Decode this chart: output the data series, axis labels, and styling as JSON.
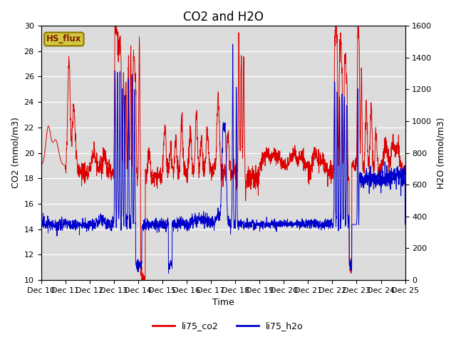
{
  "title": "CO2 and H2O",
  "xlabel": "Time",
  "ylabel_left": "CO2 (mmol/m3)",
  "ylabel_right": "H2O (mmol/m3)",
  "ylim_left": [
    10,
    30
  ],
  "ylim_right": [
    0,
    1600
  ],
  "yticks_left": [
    10,
    12,
    14,
    16,
    18,
    20,
    22,
    24,
    26,
    28,
    30
  ],
  "yticks_right": [
    0,
    200,
    400,
    600,
    800,
    1000,
    1200,
    1400,
    1600
  ],
  "xtick_labels": [
    "Dec 10",
    "Dec 11",
    "Dec 12",
    "Dec 13",
    "Dec 14",
    "Dec 15",
    "Dec 16",
    "Dec 17",
    "Dec 18",
    "Dec 19",
    "Dec 20",
    "Dec 21",
    "Dec 22",
    "Dec 23",
    "Dec 24",
    "Dec 25"
  ],
  "co2_color": "#dd0000",
  "h2o_color": "#0000cc",
  "bg_color": "#dcdcdc",
  "annotation_text": "HS_flux",
  "annotation_bg": "#d4c840",
  "annotation_border": "#8B7500",
  "legend_co2": "li75_co2",
  "legend_h2o": "li75_h2o",
  "title_fontsize": 12,
  "axis_fontsize": 9,
  "tick_fontsize": 8
}
